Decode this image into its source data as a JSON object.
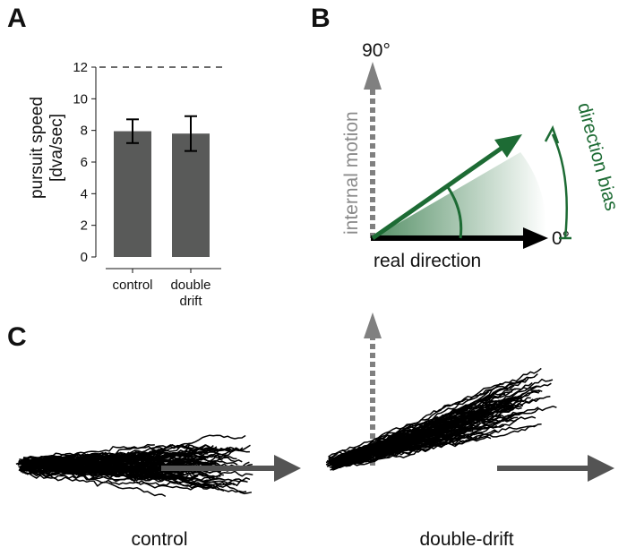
{
  "panels": {
    "A": {
      "letter": "A",
      "chart_data": {
        "type": "bar",
        "categories": [
          "control",
          "double\ndrift"
        ],
        "values": [
          7.95,
          7.8
        ],
        "error_low": [
          7.2,
          6.7
        ],
        "error_high": [
          8.7,
          8.9
        ],
        "reference_line": 12,
        "ylabel": "pursuit speed\n[dva/sec]",
        "yticks": [
          "0",
          "2",
          "4",
          "6",
          "8",
          "10",
          "12"
        ],
        "ylim": [
          0,
          12
        ],
        "bar_color": "#595a59",
        "grid": false
      }
    },
    "B": {
      "letter": "B",
      "label_90": "90°",
      "label_0": "0°",
      "label_internal": "internal motion",
      "label_real": "real direction",
      "label_bias": "direction bias",
      "colors": {
        "grey": "#8a8a8a",
        "black": "#000000",
        "green": "#1d6b34"
      }
    },
    "C": {
      "letter": "C",
      "label_control": "control",
      "label_doubledrift": "double-drift"
    }
  }
}
